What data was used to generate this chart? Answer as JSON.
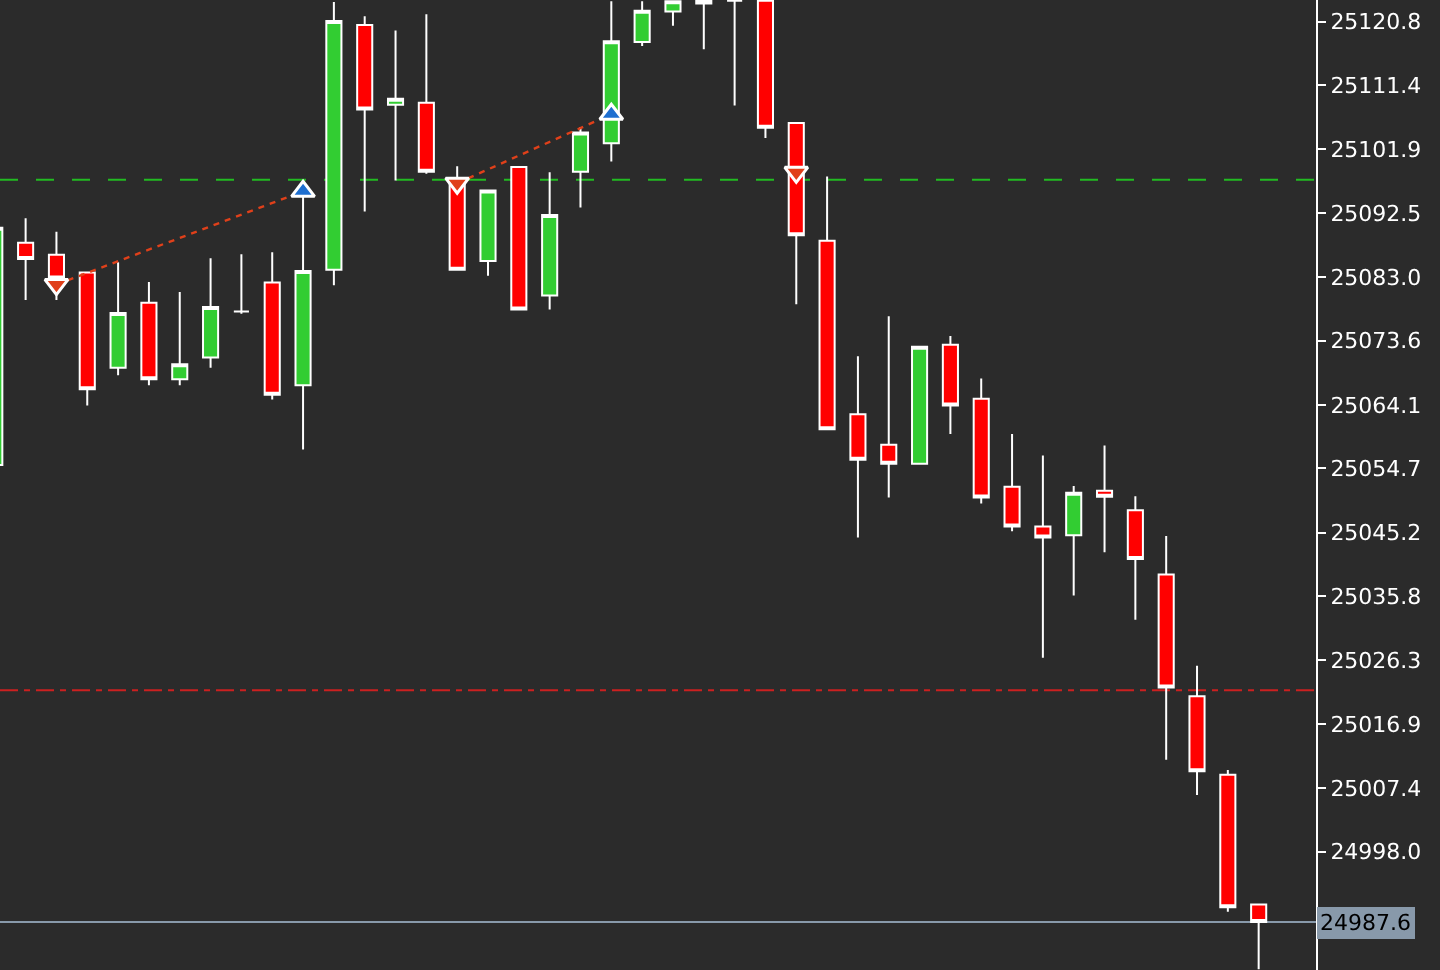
{
  "chart_data": {
    "type": "candlestick",
    "categories": [
      null,
      null,
      null,
      null,
      null,
      null,
      null,
      null,
      null,
      null,
      null,
      null,
      null,
      null,
      null,
      null,
      null,
      null,
      null,
      null,
      null,
      null,
      null,
      null,
      null,
      null,
      null,
      null,
      null,
      null,
      null,
      null,
      null,
      null,
      null,
      null,
      null,
      null,
      null,
      null,
      null,
      null
    ],
    "ohlc": [
      [
        25055.2,
        25090.3,
        25055.2,
        25090.3
      ],
      [
        25088.1,
        25091.7,
        25079.6,
        25085.7
      ],
      [
        25086.3,
        25089.7,
        25079.6,
        25082.8
      ],
      [
        25083.7,
        25083.7,
        25064.0,
        25066.4
      ],
      [
        25069.6,
        25085.2,
        25068.5,
        25077.7
      ],
      [
        25079.2,
        25082.3,
        25067.0,
        25067.9
      ],
      [
        25067.9,
        25080.8,
        25067.0,
        25070.1
      ],
      [
        25071.1,
        25085.8,
        25069.6,
        25078.6
      ],
      [
        25077.9,
        25086.4,
        25077.6,
        25077.9
      ],
      [
        25082.2,
        25086.7,
        25064.9,
        25065.6
      ],
      [
        25067.0,
        25096.6,
        25057.5,
        25083.9
      ],
      [
        25084.1,
        25123.7,
        25081.8,
        25120.9
      ],
      [
        25120.3,
        25121.6,
        25092.7,
        25107.8
      ],
      [
        25108.5,
        25119.5,
        25097.3,
        25109.4
      ],
      [
        25108.8,
        25121.9,
        25098.3,
        25098.6
      ],
      [
        25097.3,
        25099.4,
        25084.1,
        25084.1
      ],
      [
        25085.4,
        25095.8,
        25083.2,
        25095.8
      ],
      [
        25099.3,
        25099.3,
        25078.2,
        25078.2
      ],
      [
        25080.3,
        25098.5,
        25078.2,
        25092.2
      ],
      [
        25098.6,
        25105.2,
        25093.3,
        25104.4
      ],
      [
        25102.8,
        25123.8,
        25100.1,
        25117.9
      ],
      [
        25117.8,
        25123.8,
        25117.2,
        25122.4
      ],
      [
        25122.3,
        25123.9,
        25120.2,
        25123.8
      ],
      [
        25123.9,
        25123.9,
        25116.7,
        25123.5
      ],
      [
        25123.9,
        25123.9,
        25108.4,
        25123.9
      ],
      [
        25123.9,
        25123.9,
        25103.6,
        25105.1
      ],
      [
        25105.8,
        25105.8,
        25079.0,
        25089.2
      ],
      [
        25088.4,
        25097.9,
        25060.5,
        25060.5
      ],
      [
        25062.7,
        25071.3,
        25044.5,
        25056.0
      ],
      [
        25058.2,
        25077.2,
        25050.4,
        25055.4
      ],
      [
        25055.4,
        25072.7,
        25055.4,
        25072.7
      ],
      [
        25073.0,
        25074.3,
        25059.8,
        25064.0
      ],
      [
        25065.0,
        25068.0,
        25049.5,
        25050.4
      ],
      [
        25052.0,
        25059.8,
        25045.4,
        25046.1
      ],
      [
        25046.1,
        25056.6,
        25026.7,
        25044.5
      ],
      [
        25044.8,
        25052.1,
        25035.9,
        25051.1
      ],
      [
        25051.4,
        25058.1,
        25042.3,
        25050.5
      ],
      [
        25048.5,
        25050.6,
        25032.3,
        25041.3
      ],
      [
        25039.0,
        25044.7,
        25011.6,
        25022.3
      ],
      [
        25021.0,
        25025.5,
        25006.4,
        25009.9
      ],
      [
        25009.4,
        25010.1,
        24989.1,
        24989.8
      ],
      [
        24990.2,
        24990.2,
        24980.6,
        24987.6
      ]
    ],
    "colors": [
      "#32cd32",
      "#ff0000",
      "#ff0000",
      "#ff0000",
      "#32cd32",
      "#ff0000",
      "#32cd32",
      "#32cd32",
      "#ffffff",
      "#ff0000",
      "#32cd32",
      "#32cd32",
      "#ff0000",
      "#32cd32",
      "#ff0000",
      "#ff0000",
      "#32cd32",
      "#ff0000",
      "#32cd32",
      "#32cd32",
      "#32cd32",
      "#32cd32",
      "#32cd32",
      "#ffffff",
      "#ffffff",
      "#ff0000",
      "#ff0000",
      "#ff0000",
      "#ff0000",
      "#ff0000",
      "#32cd32",
      "#ff0000",
      "#ff0000",
      "#ff0000",
      "#ff0000",
      "#32cd32",
      "#ff0000",
      "#ff0000",
      "#ff0000",
      "#ff0000",
      "#ff0000",
      "#ff0000"
    ],
    "series": [
      {
        "type": "line",
        "color": "#e0401a",
        "line_style": "dotted",
        "values": [
          null,
          null,
          25081.9,
          null,
          null,
          null,
          null,
          null,
          null,
          null,
          25095.7,
          null,
          null,
          null,
          null,
          null,
          null,
          null,
          null,
          null,
          null,
          null,
          null,
          null,
          null,
          null,
          null,
          null,
          null,
          null,
          null,
          null,
          null,
          null,
          null,
          null,
          null,
          null,
          null,
          null,
          null,
          null
        ]
      },
      {
        "type": "line",
        "color": "#e0401a",
        "line_style": "dotted",
        "values": [
          null,
          null,
          null,
          null,
          null,
          null,
          null,
          null,
          null,
          null,
          null,
          null,
          null,
          null,
          null,
          25096.9,
          null,
          null,
          null,
          null,
          25107.1,
          null,
          null,
          null,
          null,
          null,
          null,
          null,
          null,
          null,
          null,
          null,
          null,
          null,
          null,
          null,
          null,
          null,
          null,
          null,
          null,
          null
        ]
      },
      {
        "type": "scatter",
        "color": "#1e6fd0",
        "marker": "triangle",
        "values": [
          null,
          null,
          null,
          null,
          null,
          null,
          null,
          null,
          null,
          null,
          25095.7,
          null,
          null,
          null,
          null,
          null,
          null,
          null,
          null,
          null,
          25107.1,
          null,
          null,
          null,
          null,
          null,
          null,
          null,
          null,
          null,
          null,
          null,
          null,
          null,
          null,
          null,
          null,
          null,
          null,
          null,
          null,
          null
        ]
      },
      {
        "type": "scatter",
        "color": "#e0401a",
        "marker": "triangle-down",
        "values": [
          null,
          null,
          25081.9,
          null,
          null,
          null,
          null,
          null,
          null,
          null,
          null,
          null,
          null,
          null,
          null,
          25096.9,
          null,
          null,
          null,
          null,
          null,
          null,
          null,
          null,
          null,
          null,
          25098.5,
          null,
          null,
          null,
          null,
          null,
          null,
          null,
          null,
          null,
          null,
          null,
          null,
          null,
          null,
          null
        ]
      }
    ],
    "ylim": [
      24980.5,
      25124.0
    ],
    "yticks": [
      {
        "value": 25120.8,
        "label": "25120.8"
      },
      {
        "value": 25111.4,
        "label": "25111.4"
      },
      {
        "value": 25101.9,
        "label": "25101.9"
      },
      {
        "value": 25092.5,
        "label": "25092.5"
      },
      {
        "value": 25083.0,
        "label": "25083.0"
      },
      {
        "value": 25073.6,
        "label": "25073.6"
      },
      {
        "value": 25064.1,
        "label": "25064.1"
      },
      {
        "value": 25054.7,
        "label": "25054.7"
      },
      {
        "value": 25045.2,
        "label": "25045.2"
      },
      {
        "value": 25035.8,
        "label": "25035.8"
      },
      {
        "value": 25026.3,
        "label": "25026.3"
      },
      {
        "value": 25016.9,
        "label": "25016.9"
      },
      {
        "value": 25007.4,
        "label": "25007.4"
      },
      {
        "value": 24998.0,
        "label": "24998.0"
      }
    ],
    "ref_lines": [
      {
        "axis": "y",
        "value": 25097.4,
        "color": "#22bb22",
        "line_style": "dashed"
      },
      {
        "axis": "y",
        "value": 25021.9,
        "color": "#cc2020",
        "line_style": "dashdot"
      },
      {
        "axis": "y",
        "value": 24987.6,
        "label": "24987.6",
        "color": "#8899aa",
        "line_style": "solid"
      }
    ],
    "grid": false,
    "tick_labels": "y"
  }
}
